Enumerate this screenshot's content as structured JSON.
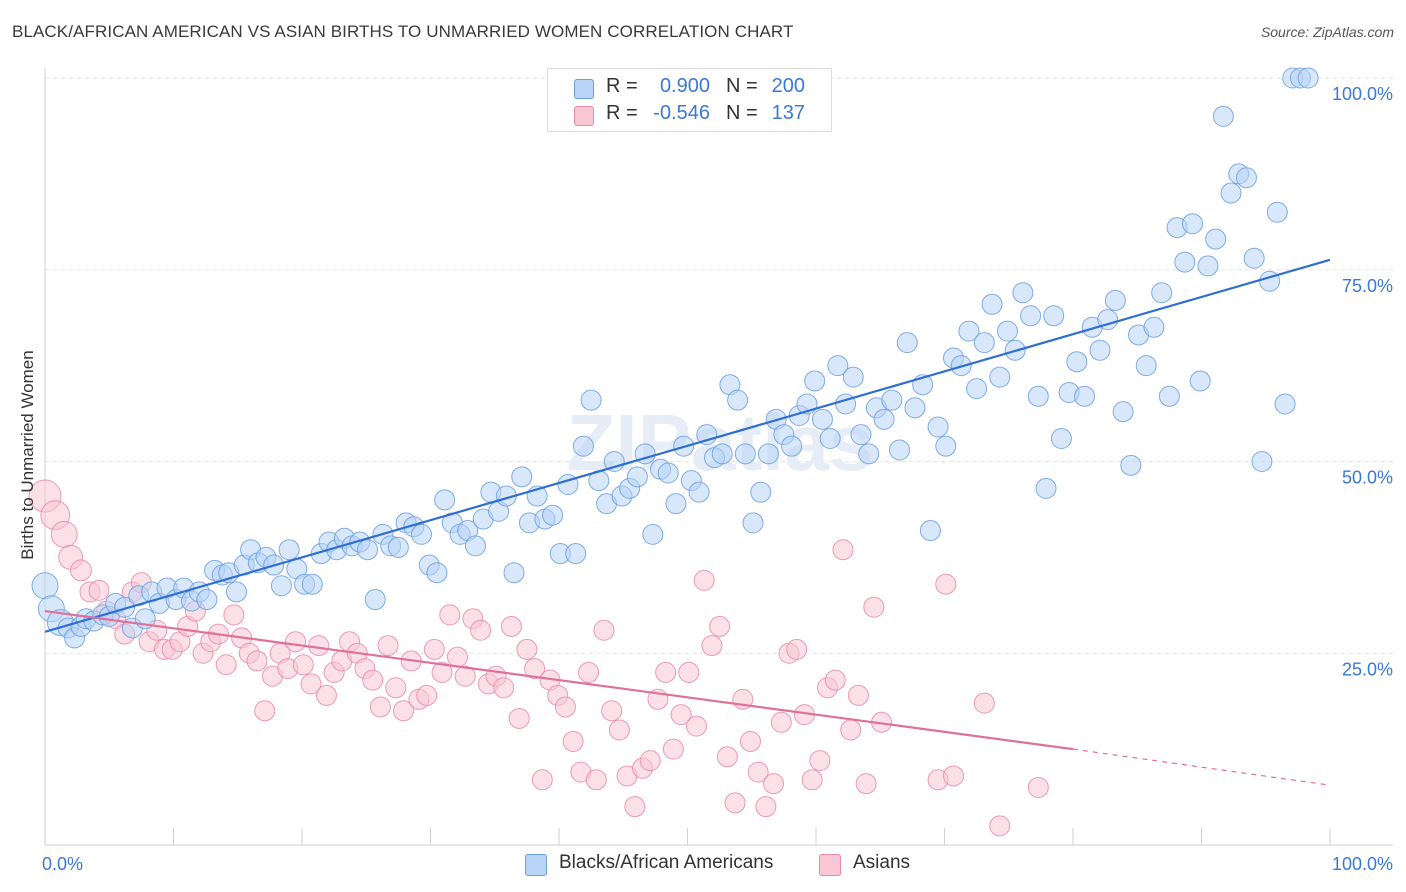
{
  "title": "BLACK/AFRICAN AMERICAN VS ASIAN BIRTHS TO UNMARRIED WOMEN CORRELATION CHART",
  "source": "Source: ZipAtlas.com",
  "watermark": "ZIPatlas",
  "legend": {
    "r_label": "R =",
    "n_label": "N =",
    "rows": [
      {
        "r": "0.900",
        "n": "200",
        "color": "#a8c8f0",
        "border": "#6a9fe0"
      },
      {
        "r": "-0.546",
        "n": "137",
        "color": "#f5b8cb",
        "border": "#e88aa8"
      }
    ]
  },
  "bottom_legend": [
    {
      "label": "Blacks/African Americans",
      "color": "#b8d3f5",
      "border": "#6a9fe0"
    },
    {
      "label": "Asians",
      "color": "#f8c6d5",
      "border": "#e88aa8"
    }
  ],
  "chart_data": {
    "type": "scatter",
    "xlabel": "",
    "ylabel": "Births to Unmarried Women",
    "xlim": [
      0,
      100
    ],
    "ylim": [
      0,
      100
    ],
    "x_tick_labels": [
      "0.0%",
      "100.0%"
    ],
    "y_tick_labels": [
      "25.0%",
      "50.0%",
      "75.0%",
      "100.0%"
    ],
    "y_ticks": [
      25,
      50,
      75,
      100
    ],
    "grid": true,
    "series": [
      {
        "name": "Blacks/African Americans",
        "color": "#6a9fe0",
        "fill": "#b8d3f5",
        "trend_line": {
          "x": [
            0,
            100
          ],
          "y": [
            27.8,
            76.3
          ],
          "color": "#2f6fd0"
        },
        "points": [
          [
            0,
            33.8
          ],
          [
            0.5,
            30.8
          ],
          [
            1.2,
            29.0
          ],
          [
            1.8,
            28.3
          ],
          [
            2.3,
            27.0
          ],
          [
            2.8,
            28.5
          ],
          [
            3.2,
            29.5
          ],
          [
            3.8,
            29.2
          ],
          [
            4.5,
            30.0
          ],
          [
            5.0,
            29.8
          ],
          [
            5.5,
            31.5
          ],
          [
            6.2,
            31.0
          ],
          [
            6.8,
            28.3
          ],
          [
            7.3,
            32.5
          ],
          [
            7.8,
            29.5
          ],
          [
            8.3,
            33.0
          ],
          [
            8.9,
            31.5
          ],
          [
            9.5,
            33.5
          ],
          [
            10.2,
            32.0
          ],
          [
            10.8,
            33.5
          ],
          [
            11.4,
            31.8
          ],
          [
            12.0,
            33.0
          ],
          [
            12.6,
            32.0
          ],
          [
            13.2,
            35.8
          ],
          [
            13.8,
            35.2
          ],
          [
            14.3,
            35.5
          ],
          [
            14.9,
            33.0
          ],
          [
            15.5,
            36.5
          ],
          [
            16.0,
            38.5
          ],
          [
            16.6,
            36.8
          ],
          [
            17.2,
            37.5
          ],
          [
            17.8,
            36.5
          ],
          [
            18.4,
            33.8
          ],
          [
            19.0,
            38.5
          ],
          [
            19.6,
            36.0
          ],
          [
            20.2,
            34.0
          ],
          [
            20.8,
            34.0
          ],
          [
            21.5,
            38.0
          ],
          [
            22.1,
            39.5
          ],
          [
            22.7,
            38.5
          ],
          [
            23.3,
            40.0
          ],
          [
            23.9,
            39.0
          ],
          [
            24.5,
            39.5
          ],
          [
            25.1,
            38.5
          ],
          [
            25.7,
            32.0
          ],
          [
            26.3,
            40.5
          ],
          [
            26.9,
            39.0
          ],
          [
            27.5,
            38.8
          ],
          [
            28.1,
            42.0
          ],
          [
            28.7,
            41.5
          ],
          [
            29.3,
            40.5
          ],
          [
            29.9,
            36.5
          ],
          [
            30.5,
            35.5
          ],
          [
            31.1,
            45.0
          ],
          [
            31.7,
            42.0
          ],
          [
            32.3,
            40.5
          ],
          [
            32.9,
            41.0
          ],
          [
            33.5,
            39.0
          ],
          [
            34.1,
            42.5
          ],
          [
            34.7,
            46.0
          ],
          [
            35.3,
            43.5
          ],
          [
            35.9,
            45.5
          ],
          [
            36.5,
            35.5
          ],
          [
            37.1,
            48.0
          ],
          [
            37.7,
            42.0
          ],
          [
            38.3,
            45.5
          ],
          [
            38.9,
            42.5
          ],
          [
            39.5,
            43.0
          ],
          [
            40.1,
            38.0
          ],
          [
            40.7,
            47.0
          ],
          [
            41.3,
            38.0
          ],
          [
            41.9,
            52.0
          ],
          [
            42.5,
            58.0
          ],
          [
            43.1,
            47.5
          ],
          [
            43.7,
            44.5
          ],
          [
            44.3,
            50.0
          ],
          [
            44.9,
            45.5
          ],
          [
            45.5,
            46.5
          ],
          [
            46.1,
            48.0
          ],
          [
            46.7,
            51.0
          ],
          [
            47.3,
            40.5
          ],
          [
            47.9,
            49.0
          ],
          [
            48.5,
            48.5
          ],
          [
            49.1,
            44.5
          ],
          [
            49.7,
            52.0
          ],
          [
            50.3,
            47.5
          ],
          [
            50.9,
            46.0
          ],
          [
            51.5,
            53.5
          ],
          [
            52.1,
            50.5
          ],
          [
            52.7,
            51.0
          ],
          [
            53.3,
            60.0
          ],
          [
            53.9,
            58.0
          ],
          [
            54.5,
            51.0
          ],
          [
            55.1,
            42.0
          ],
          [
            55.7,
            46.0
          ],
          [
            56.3,
            51.0
          ],
          [
            56.9,
            55.5
          ],
          [
            57.5,
            53.5
          ],
          [
            58.1,
            52.0
          ],
          [
            58.7,
            56.0
          ],
          [
            59.3,
            57.5
          ],
          [
            59.9,
            60.5
          ],
          [
            60.5,
            55.5
          ],
          [
            61.1,
            53.0
          ],
          [
            61.7,
            62.5
          ],
          [
            62.3,
            57.5
          ],
          [
            62.9,
            61.0
          ],
          [
            63.5,
            53.5
          ],
          [
            64.1,
            51.0
          ],
          [
            64.7,
            57.0
          ],
          [
            65.3,
            55.5
          ],
          [
            65.9,
            58.0
          ],
          [
            66.5,
            51.5
          ],
          [
            67.1,
            65.5
          ],
          [
            67.7,
            57.0
          ],
          [
            68.3,
            60.0
          ],
          [
            68.9,
            41.0
          ],
          [
            69.5,
            54.5
          ],
          [
            70.1,
            52.0
          ],
          [
            70.7,
            63.5
          ],
          [
            71.3,
            62.5
          ],
          [
            71.9,
            67.0
          ],
          [
            72.5,
            59.5
          ],
          [
            73.1,
            65.5
          ],
          [
            73.7,
            70.5
          ],
          [
            74.3,
            61.0
          ],
          [
            74.9,
            67.0
          ],
          [
            75.5,
            64.5
          ],
          [
            76.1,
            72.0
          ],
          [
            76.7,
            69.0
          ],
          [
            77.3,
            58.5
          ],
          [
            77.9,
            46.5
          ],
          [
            78.5,
            69.0
          ],
          [
            79.1,
            53.0
          ],
          [
            79.7,
            59.0
          ],
          [
            80.3,
            63.0
          ],
          [
            80.9,
            58.5
          ],
          [
            81.5,
            67.5
          ],
          [
            82.1,
            64.5
          ],
          [
            82.7,
            68.5
          ],
          [
            83.3,
            71.0
          ],
          [
            83.9,
            56.5
          ],
          [
            84.5,
            49.5
          ],
          [
            85.1,
            66.5
          ],
          [
            85.7,
            62.5
          ],
          [
            86.3,
            67.5
          ],
          [
            86.9,
            72.0
          ],
          [
            87.5,
            58.5
          ],
          [
            88.1,
            80.5
          ],
          [
            88.7,
            76.0
          ],
          [
            89.3,
            81.0
          ],
          [
            89.9,
            60.5
          ],
          [
            90.5,
            75.5
          ],
          [
            91.1,
            79.0
          ],
          [
            91.7,
            95.0
          ],
          [
            92.3,
            85.0
          ],
          [
            92.9,
            87.5
          ],
          [
            93.5,
            87.0
          ],
          [
            94.1,
            76.5
          ],
          [
            94.7,
            50.0
          ],
          [
            95.3,
            73.5
          ],
          [
            95.9,
            82.5
          ],
          [
            96.5,
            57.5
          ],
          [
            97.1,
            100.0
          ],
          [
            97.7,
            100.0
          ],
          [
            98.3,
            100.0
          ]
        ]
      },
      {
        "name": "Asians",
        "color": "#e88aa8",
        "fill": "#f8c6d5",
        "trend_line": {
          "x": [
            0,
            80
          ],
          "y": [
            30.5,
            12.5
          ],
          "color": "#e0709a",
          "dashed_extension": {
            "x": [
              80,
              100
            ],
            "y": [
              12.5,
              7.8
            ]
          }
        },
        "points": [
          [
            0,
            45.5
          ],
          [
            0.8,
            43.0
          ],
          [
            1.5,
            40.5
          ],
          [
            2.0,
            37.5
          ],
          [
            2.8,
            35.8
          ],
          [
            3.5,
            33.0
          ],
          [
            4.2,
            33.2
          ],
          [
            4.8,
            30.5
          ],
          [
            5.5,
            29.5
          ],
          [
            6.2,
            27.5
          ],
          [
            6.8,
            33.0
          ],
          [
            7.5,
            34.2
          ],
          [
            8.1,
            26.5
          ],
          [
            8.7,
            28.0
          ],
          [
            9.3,
            25.5
          ],
          [
            9.9,
            25.5
          ],
          [
            10.5,
            26.5
          ],
          [
            11.1,
            28.5
          ],
          [
            11.7,
            30.5
          ],
          [
            12.3,
            25.0
          ],
          [
            12.9,
            26.5
          ],
          [
            13.5,
            27.5
          ],
          [
            14.1,
            23.5
          ],
          [
            14.7,
            30.0
          ],
          [
            15.3,
            27.0
          ],
          [
            15.9,
            25.0
          ],
          [
            16.5,
            24.0
          ],
          [
            17.1,
            17.5
          ],
          [
            17.7,
            22.0
          ],
          [
            18.3,
            25.0
          ],
          [
            18.9,
            23.0
          ],
          [
            19.5,
            26.5
          ],
          [
            20.1,
            23.5
          ],
          [
            20.7,
            21.0
          ],
          [
            21.3,
            26.0
          ],
          [
            21.9,
            19.5
          ],
          [
            22.5,
            22.5
          ],
          [
            23.1,
            24.0
          ],
          [
            23.7,
            26.5
          ],
          [
            24.3,
            25.0
          ],
          [
            24.9,
            23.0
          ],
          [
            25.5,
            21.5
          ],
          [
            26.1,
            18.0
          ],
          [
            26.7,
            26.0
          ],
          [
            27.3,
            20.5
          ],
          [
            27.9,
            17.5
          ],
          [
            28.5,
            24.0
          ],
          [
            29.1,
            19.0
          ],
          [
            29.7,
            19.5
          ],
          [
            30.3,
            25.5
          ],
          [
            30.9,
            22.5
          ],
          [
            31.5,
            30.0
          ],
          [
            32.1,
            24.5
          ],
          [
            32.7,
            22.0
          ],
          [
            33.3,
            29.5
          ],
          [
            33.9,
            28.0
          ],
          [
            34.5,
            21.0
          ],
          [
            35.1,
            22.0
          ],
          [
            35.7,
            20.5
          ],
          [
            36.3,
            28.5
          ],
          [
            36.9,
            16.5
          ],
          [
            37.5,
            25.5
          ],
          [
            38.1,
            23.0
          ],
          [
            38.7,
            8.5
          ],
          [
            39.3,
            21.5
          ],
          [
            39.9,
            19.5
          ],
          [
            40.5,
            18.0
          ],
          [
            41.1,
            13.5
          ],
          [
            41.7,
            9.5
          ],
          [
            42.3,
            22.5
          ],
          [
            42.9,
            8.5
          ],
          [
            43.5,
            28.0
          ],
          [
            44.1,
            17.5
          ],
          [
            44.7,
            15.0
          ],
          [
            45.3,
            9.0
          ],
          [
            45.9,
            5.0
          ],
          [
            46.5,
            10.0
          ],
          [
            47.1,
            11.0
          ],
          [
            47.7,
            19.0
          ],
          [
            48.3,
            22.5
          ],
          [
            48.9,
            12.5
          ],
          [
            49.5,
            17.0
          ],
          [
            50.1,
            22.5
          ],
          [
            50.7,
            15.5
          ],
          [
            51.3,
            34.5
          ],
          [
            51.9,
            26.0
          ],
          [
            52.5,
            28.5
          ],
          [
            53.1,
            11.5
          ],
          [
            53.7,
            5.5
          ],
          [
            54.3,
            19.0
          ],
          [
            54.9,
            13.5
          ],
          [
            55.5,
            9.5
          ],
          [
            56.1,
            5.0
          ],
          [
            56.7,
            8.0
          ],
          [
            57.3,
            16.0
          ],
          [
            57.9,
            25.0
          ],
          [
            58.5,
            25.5
          ],
          [
            59.1,
            17.0
          ],
          [
            59.7,
            8.5
          ],
          [
            60.3,
            11.0
          ],
          [
            60.9,
            20.5
          ],
          [
            61.5,
            21.5
          ],
          [
            62.1,
            38.5
          ],
          [
            62.7,
            15.0
          ],
          [
            63.3,
            19.5
          ],
          [
            63.9,
            8.0
          ],
          [
            64.5,
            31.0
          ],
          [
            65.1,
            16.0
          ],
          [
            69.5,
            8.5
          ],
          [
            70.1,
            34.0
          ],
          [
            70.7,
            9.0
          ],
          [
            73.1,
            18.5
          ],
          [
            74.3,
            2.5
          ],
          [
            77.3,
            7.5
          ]
        ]
      }
    ]
  }
}
